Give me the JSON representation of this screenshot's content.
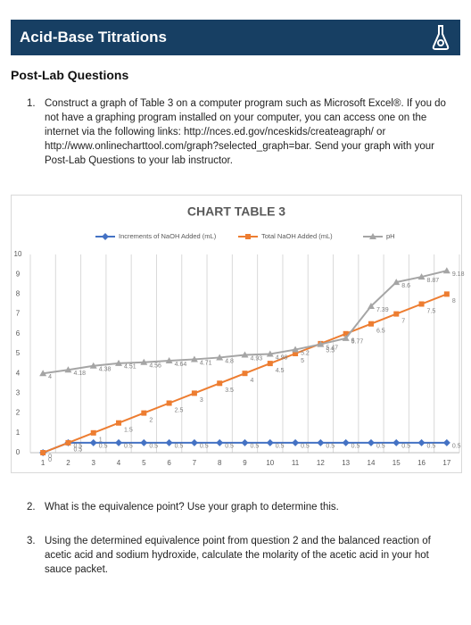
{
  "header": {
    "title": "Acid-Base Titrations"
  },
  "section_title": "Post-Lab Questions",
  "questions": [
    {
      "number": "1.",
      "text": "Construct a graph of Table 3 on a computer program such as Microsoft Excel®. If you do not have a graphing program installed on your computer, you can access one on the internet via the following links: http://nces.ed.gov/nceskids/createagraph/ or http://www.onlinecharttool.com/graph?selected_graph=bar. Send your graph with your Post-Lab Questions to your lab instructor."
    },
    {
      "number": "2.",
      "text": "What is the equivalence point? Use your graph to determine this."
    },
    {
      "number": "3.",
      "text": "Using the determined equivalence point from question 2 and the balanced reaction of acetic acid and sodium hydroxide, calculate the molarity of the acetic acid in your hot sauce packet."
    }
  ],
  "chart_data": {
    "type": "line",
    "title": "CHART TABLE 3",
    "categories": [
      "1",
      "2",
      "3",
      "4",
      "5",
      "6",
      "7",
      "8",
      "9",
      "10",
      "11",
      "12",
      "13",
      "14",
      "15",
      "16",
      "17"
    ],
    "series": [
      {
        "name": "Increments of NaOH Added (mL)",
        "color": "#4472c4",
        "marker": "diamond",
        "values": [
          0,
          0.5,
          0.5,
          0.5,
          0.5,
          0.5,
          0.5,
          0.5,
          0.5,
          0.5,
          0.5,
          0.5,
          0.5,
          0.5,
          0.5,
          0.5,
          0.5
        ]
      },
      {
        "name": "Total NaOH Added (mL)",
        "color": "#ed7d31",
        "marker": "square",
        "values": [
          0,
          0.5,
          1,
          1.5,
          2,
          2.5,
          3,
          3.5,
          4,
          4.5,
          5,
          5.5,
          6,
          6.5,
          7,
          7.5,
          8
        ]
      },
      {
        "name": "pH",
        "color": "#a5a5a5",
        "marker": "triangle",
        "values": [
          4,
          4.18,
          4.38,
          4.51,
          4.56,
          4.64,
          4.71,
          4.8,
          4.93,
          4.98,
          5.2,
          5.47,
          5.77,
          7.39,
          8.6,
          8.87,
          9.18
        ]
      }
    ],
    "ylim": [
      0,
      10
    ],
    "yticks": [
      0,
      1,
      2,
      3,
      4,
      5,
      6,
      7,
      8,
      9,
      10
    ],
    "grid": true,
    "legend": "top"
  }
}
